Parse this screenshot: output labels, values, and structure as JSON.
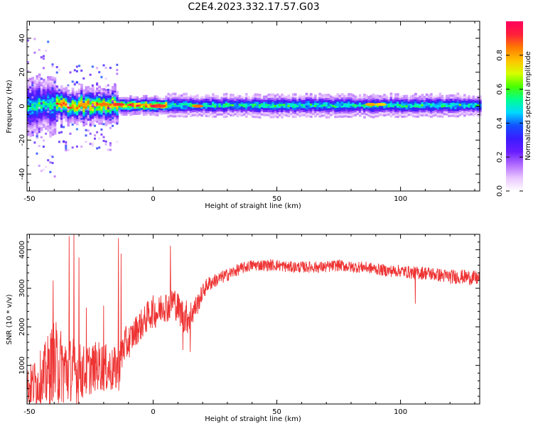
{
  "title": "C2E4.2023.332.17.57.G03",
  "chart_data": [
    {
      "type": "heatmap",
      "title": "C2E4.2023.332.17.57.G03",
      "xlabel": "Height of straight line (km)",
      "ylabel": "Frequency (Hz)",
      "xlim": [
        -51,
        132
      ],
      "ylim": [
        -50,
        50
      ],
      "xticks": [
        -50,
        0,
        50,
        100
      ],
      "yticks": [
        -40,
        -20,
        0,
        20,
        40
      ],
      "grid": false,
      "colorbar": {
        "label": "Normalized spectral amplitude",
        "range": [
          0,
          1
        ],
        "ticks": [
          0.0,
          0.2,
          0.4,
          0.6,
          0.8
        ],
        "colormap": [
          "#ffffff",
          "#e9c6ff",
          "#b36dff",
          "#6a1dff",
          "#3a1cff",
          "#1450ff",
          "#00d8ff",
          "#00ff90",
          "#49ff00",
          "#d7ff00",
          "#ffc200",
          "#ff7a00",
          "#ff1f3b",
          "#ff005c"
        ]
      },
      "band": {
        "center_freq": 0,
        "segments": [
          {
            "x": [
              -51,
              -40
            ],
            "half_width": 16,
            "peak": 0.55,
            "scatter": true
          },
          {
            "x": [
              -40,
              -15
            ],
            "half_width": 10,
            "peak": 0.85,
            "scatter": true
          },
          {
            "x": [
              -15,
              5
            ],
            "half_width": 5,
            "peak": 0.9,
            "scatter": false
          },
          {
            "x": [
              5,
              132
            ],
            "half_width": 6,
            "peak": 0.55,
            "scatter": false
          }
        ],
        "hot_spots": [
          {
            "x": 1,
            "y": 0,
            "value": 0.95
          },
          {
            "x": 3,
            "y": 0,
            "value": 0.9
          },
          {
            "x": -14,
            "y": 1,
            "value": 0.9
          },
          {
            "x": -20,
            "y": 1,
            "value": 0.85
          },
          {
            "x": -28,
            "y": 1,
            "value": 0.8
          },
          {
            "x": 18,
            "y": 0,
            "value": 0.85
          },
          {
            "x": 88,
            "y": 1,
            "value": 0.8
          },
          {
            "x": 92,
            "y": 1,
            "value": 0.75
          }
        ]
      }
    },
    {
      "type": "line",
      "xlabel": "Height of straight line (km)",
      "ylabel": "SNR (10 * v/v)",
      "xlim": [
        -51,
        132
      ],
      "ylim": [
        0,
        4400
      ],
      "xticks": [
        -50,
        0,
        50,
        100
      ],
      "yticks": [
        1000,
        2000,
        3000,
        4000
      ],
      "grid": false,
      "series": [
        {
          "color": "#ee3333",
          "x": [
            -51,
            -47,
            -44,
            -42,
            -40,
            -38,
            -36,
            -34,
            -32,
            -30,
            -28,
            -26,
            -24,
            -22,
            -20,
            -18,
            -16,
            -14,
            -12,
            -10,
            -8,
            -6,
            -4,
            -2,
            0,
            2,
            4,
            6,
            8,
            10,
            12,
            14,
            16,
            18,
            20,
            22,
            25,
            30,
            35,
            40,
            45,
            50,
            55,
            60,
            65,
            70,
            75,
            80,
            85,
            90,
            95,
            100,
            105,
            110,
            115,
            120,
            125,
            132
          ],
          "values": [
            450,
            550,
            650,
            900,
            1000,
            950,
            900,
            850,
            900,
            800,
            850,
            900,
            950,
            1000,
            950,
            900,
            850,
            1000,
            1500,
            1600,
            1800,
            2000,
            2100,
            2300,
            2400,
            2350,
            2600,
            2500,
            2700,
            2500,
            2300,
            2250,
            2400,
            2600,
            2900,
            3100,
            3200,
            3350,
            3500,
            3600,
            3600,
            3600,
            3550,
            3550,
            3550,
            3550,
            3600,
            3550,
            3550,
            3500,
            3450,
            3450,
            3400,
            3400,
            3350,
            3300,
            3300,
            3250
          ],
          "noise_amplitude": [
            500,
            700,
            900,
            1000,
            1200,
            1100,
            1000,
            900,
            900,
            800,
            700,
            700,
            650,
            650,
            650,
            600,
            600,
            700,
            500,
            450,
            400,
            420,
            400,
            400,
            420,
            400,
            450,
            400,
            450,
            400,
            450,
            450,
            350,
            280,
            220,
            200,
            180,
            170,
            150,
            150,
            150,
            150,
            150,
            150,
            150,
            150,
            150,
            150,
            150,
            150,
            160,
            160,
            170,
            180,
            180,
            190,
            190,
            190
          ]
        }
      ],
      "spikes": [
        {
          "x": -40.5,
          "y": 3200
        },
        {
          "x": -34,
          "y": 4350
        },
        {
          "x": -32,
          "y": 4400
        },
        {
          "x": -30,
          "y": 3800
        },
        {
          "x": -27,
          "y": 2500
        },
        {
          "x": -20,
          "y": 2550
        },
        {
          "x": -14,
          "y": 4300
        },
        {
          "x": -13,
          "y": 3900
        },
        {
          "x": 7,
          "y": 4100
        },
        {
          "x": 12,
          "y": 1400
        },
        {
          "x": 15,
          "y": 1350
        },
        {
          "x": 106,
          "y": 2600
        }
      ]
    }
  ]
}
